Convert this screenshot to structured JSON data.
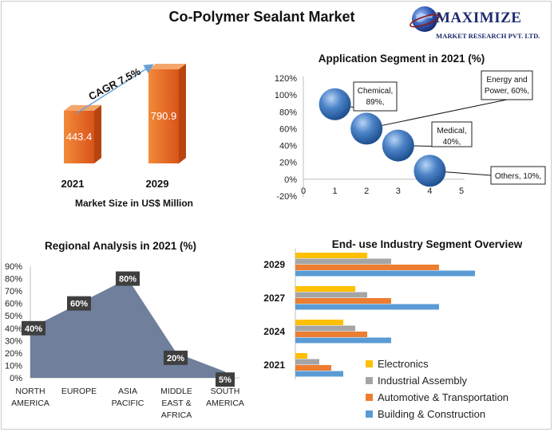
{
  "title": "Co-Polymer Sealant Market",
  "logo": {
    "name": "MAXIMIZE",
    "subtitle": "MARKET RESEARCH PVT. LTD.",
    "icon": "globe-icon"
  },
  "market_size": {
    "caption": "Market Size in US$ Million",
    "cagr_label": "CAGR 7.5%",
    "bar_color": "#e8651e"
  },
  "application": {
    "title": "Application Segment in 2021 (%)"
  },
  "regional": {
    "title": "Regional Analysis in 2021 (%)",
    "fill_color": "#6f7f9c"
  },
  "industry": {
    "title": "End- use Industry Segment Overview"
  },
  "chart_data": [
    {
      "type": "bar",
      "categories": [
        "2021",
        "2029"
      ],
      "values": [
        443.4,
        790.9
      ],
      "value_labels": [
        "443.4",
        "790.9"
      ]
    },
    {
      "type": "scatter",
      "x": [
        1,
        2,
        3,
        4
      ],
      "y": [
        89,
        60,
        40,
        10
      ],
      "point_labels": [
        [
          "Chemical,",
          "89%,"
        ],
        [
          "Energy and",
          "Power, 60%,"
        ],
        [
          "Medical,",
          "40%,"
        ],
        [
          "Others, 10%,"
        ]
      ],
      "xlim": [
        0,
        5
      ],
      "ylim": [
        -20,
        120
      ],
      "x_ticks": [
        "0",
        "1",
        "2",
        "3",
        "4",
        "5"
      ],
      "y_ticks": [
        "120%",
        "100%",
        "80%",
        "60%",
        "40%",
        "20%",
        "0%",
        "-20%"
      ]
    },
    {
      "type": "area",
      "categories": [
        [
          "NORTH",
          "AMERICA"
        ],
        [
          "EUROPE"
        ],
        [
          "ASIA",
          "PACIFIC"
        ],
        [
          "MIDDLE",
          "EAST &",
          "AFRICA"
        ],
        [
          "SOUTH",
          "AMERICA"
        ]
      ],
      "values": [
        40,
        60,
        80,
        20,
        5
      ],
      "value_labels": [
        "40%",
        "60%",
        "80%",
        "20%",
        "5%"
      ],
      "ylim": [
        0,
        90
      ],
      "y_ticks": [
        "90%",
        "80%",
        "70%",
        "60%",
        "50%",
        "40%",
        "30%",
        "20%",
        "10%",
        "0%"
      ]
    },
    {
      "type": "bar",
      "orientation": "horizontal",
      "categories": [
        "2029",
        "2027",
        "2024",
        "2021"
      ],
      "series": [
        {
          "name": "Electronics",
          "color": "#ffc000",
          "values": [
            3,
            2.5,
            2,
            0.5
          ]
        },
        {
          "name": "Industrial Assembly",
          "color": "#a5a5a5",
          "values": [
            4,
            3,
            2.5,
            1
          ]
        },
        {
          "name": "Automotive & Transportation",
          "color": "#ed7d31",
          "values": [
            6,
            4,
            3,
            1.5
          ]
        },
        {
          "name": "Building & Construction",
          "color": "#5b9bd5",
          "values": [
            7.5,
            6,
            4,
            2
          ]
        }
      ],
      "legend_position": "bottom-right"
    }
  ]
}
